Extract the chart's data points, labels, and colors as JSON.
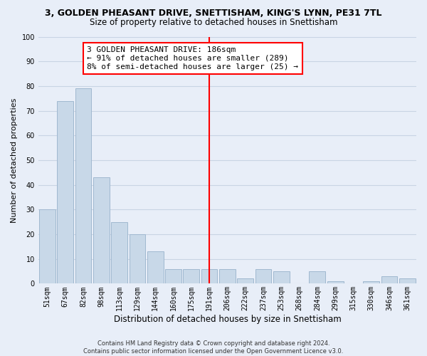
{
  "title": "3, GOLDEN PHEASANT DRIVE, SNETTISHAM, KING'S LYNN, PE31 7TL",
  "subtitle": "Size of property relative to detached houses in Snettisham",
  "xlabel": "Distribution of detached houses by size in Snettisham",
  "ylabel": "Number of detached properties",
  "bin_labels": [
    "51sqm",
    "67sqm",
    "82sqm",
    "98sqm",
    "113sqm",
    "129sqm",
    "144sqm",
    "160sqm",
    "175sqm",
    "191sqm",
    "206sqm",
    "222sqm",
    "237sqm",
    "253sqm",
    "268sqm",
    "284sqm",
    "299sqm",
    "315sqm",
    "330sqm",
    "346sqm",
    "361sqm"
  ],
  "bar_heights": [
    30,
    74,
    79,
    43,
    25,
    20,
    13,
    6,
    6,
    6,
    6,
    2,
    6,
    5,
    0,
    5,
    1,
    0,
    1,
    3,
    2
  ],
  "bar_color": "#c8d8e8",
  "bar_edgecolor": "#a0b8d0",
  "vline_x_index": 9,
  "vline_color": "red",
  "annotation_line1": "3 GOLDEN PHEASANT DRIVE: 186sqm",
  "annotation_line2": "← 91% of detached houses are smaller (289)",
  "annotation_line3": "8% of semi-detached houses are larger (25) →",
  "annotation_box_color": "red",
  "annotation_box_bg": "white",
  "ylim": [
    0,
    100
  ],
  "yticks": [
    0,
    10,
    20,
    30,
    40,
    50,
    60,
    70,
    80,
    90,
    100
  ],
  "grid_color": "#c8d4e4",
  "bg_color": "#e8eef8",
  "footer": "Contains HM Land Registry data © Crown copyright and database right 2024.\nContains public sector information licensed under the Open Government Licence v3.0.",
  "title_fontsize": 9,
  "subtitle_fontsize": 8.5,
  "xlabel_fontsize": 8.5,
  "ylabel_fontsize": 8,
  "tick_fontsize": 7,
  "annotation_fontsize": 8,
  "footer_fontsize": 6
}
